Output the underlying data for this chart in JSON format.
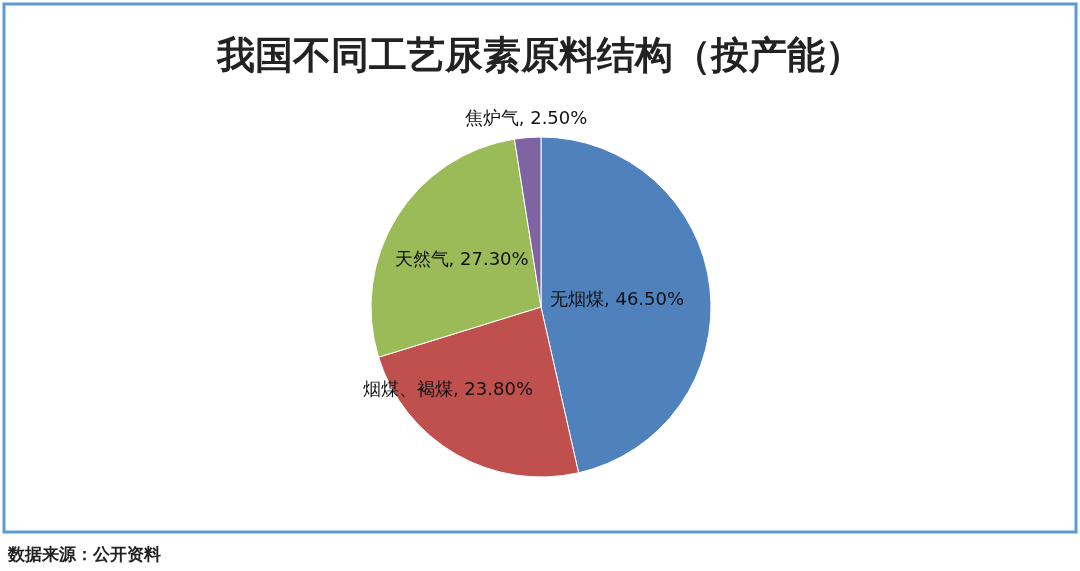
{
  "chart_data": {
    "type": "pie",
    "title": "我国不同工艺尿素原料结构（按产能）",
    "categories": [
      "无烟煤",
      "烟煤、褐煤",
      "天然气",
      "焦炉气"
    ],
    "values": [
      46.5,
      23.8,
      27.3,
      2.5
    ],
    "value_labels": [
      "46.50%",
      "23.80%",
      "27.30%",
      "2.50%"
    ],
    "colors": [
      "#4f81bd",
      "#c0504d",
      "#9bbb59",
      "#8064a2"
    ],
    "annotations": [
      "数据来源：公开资料"
    ]
  }
}
